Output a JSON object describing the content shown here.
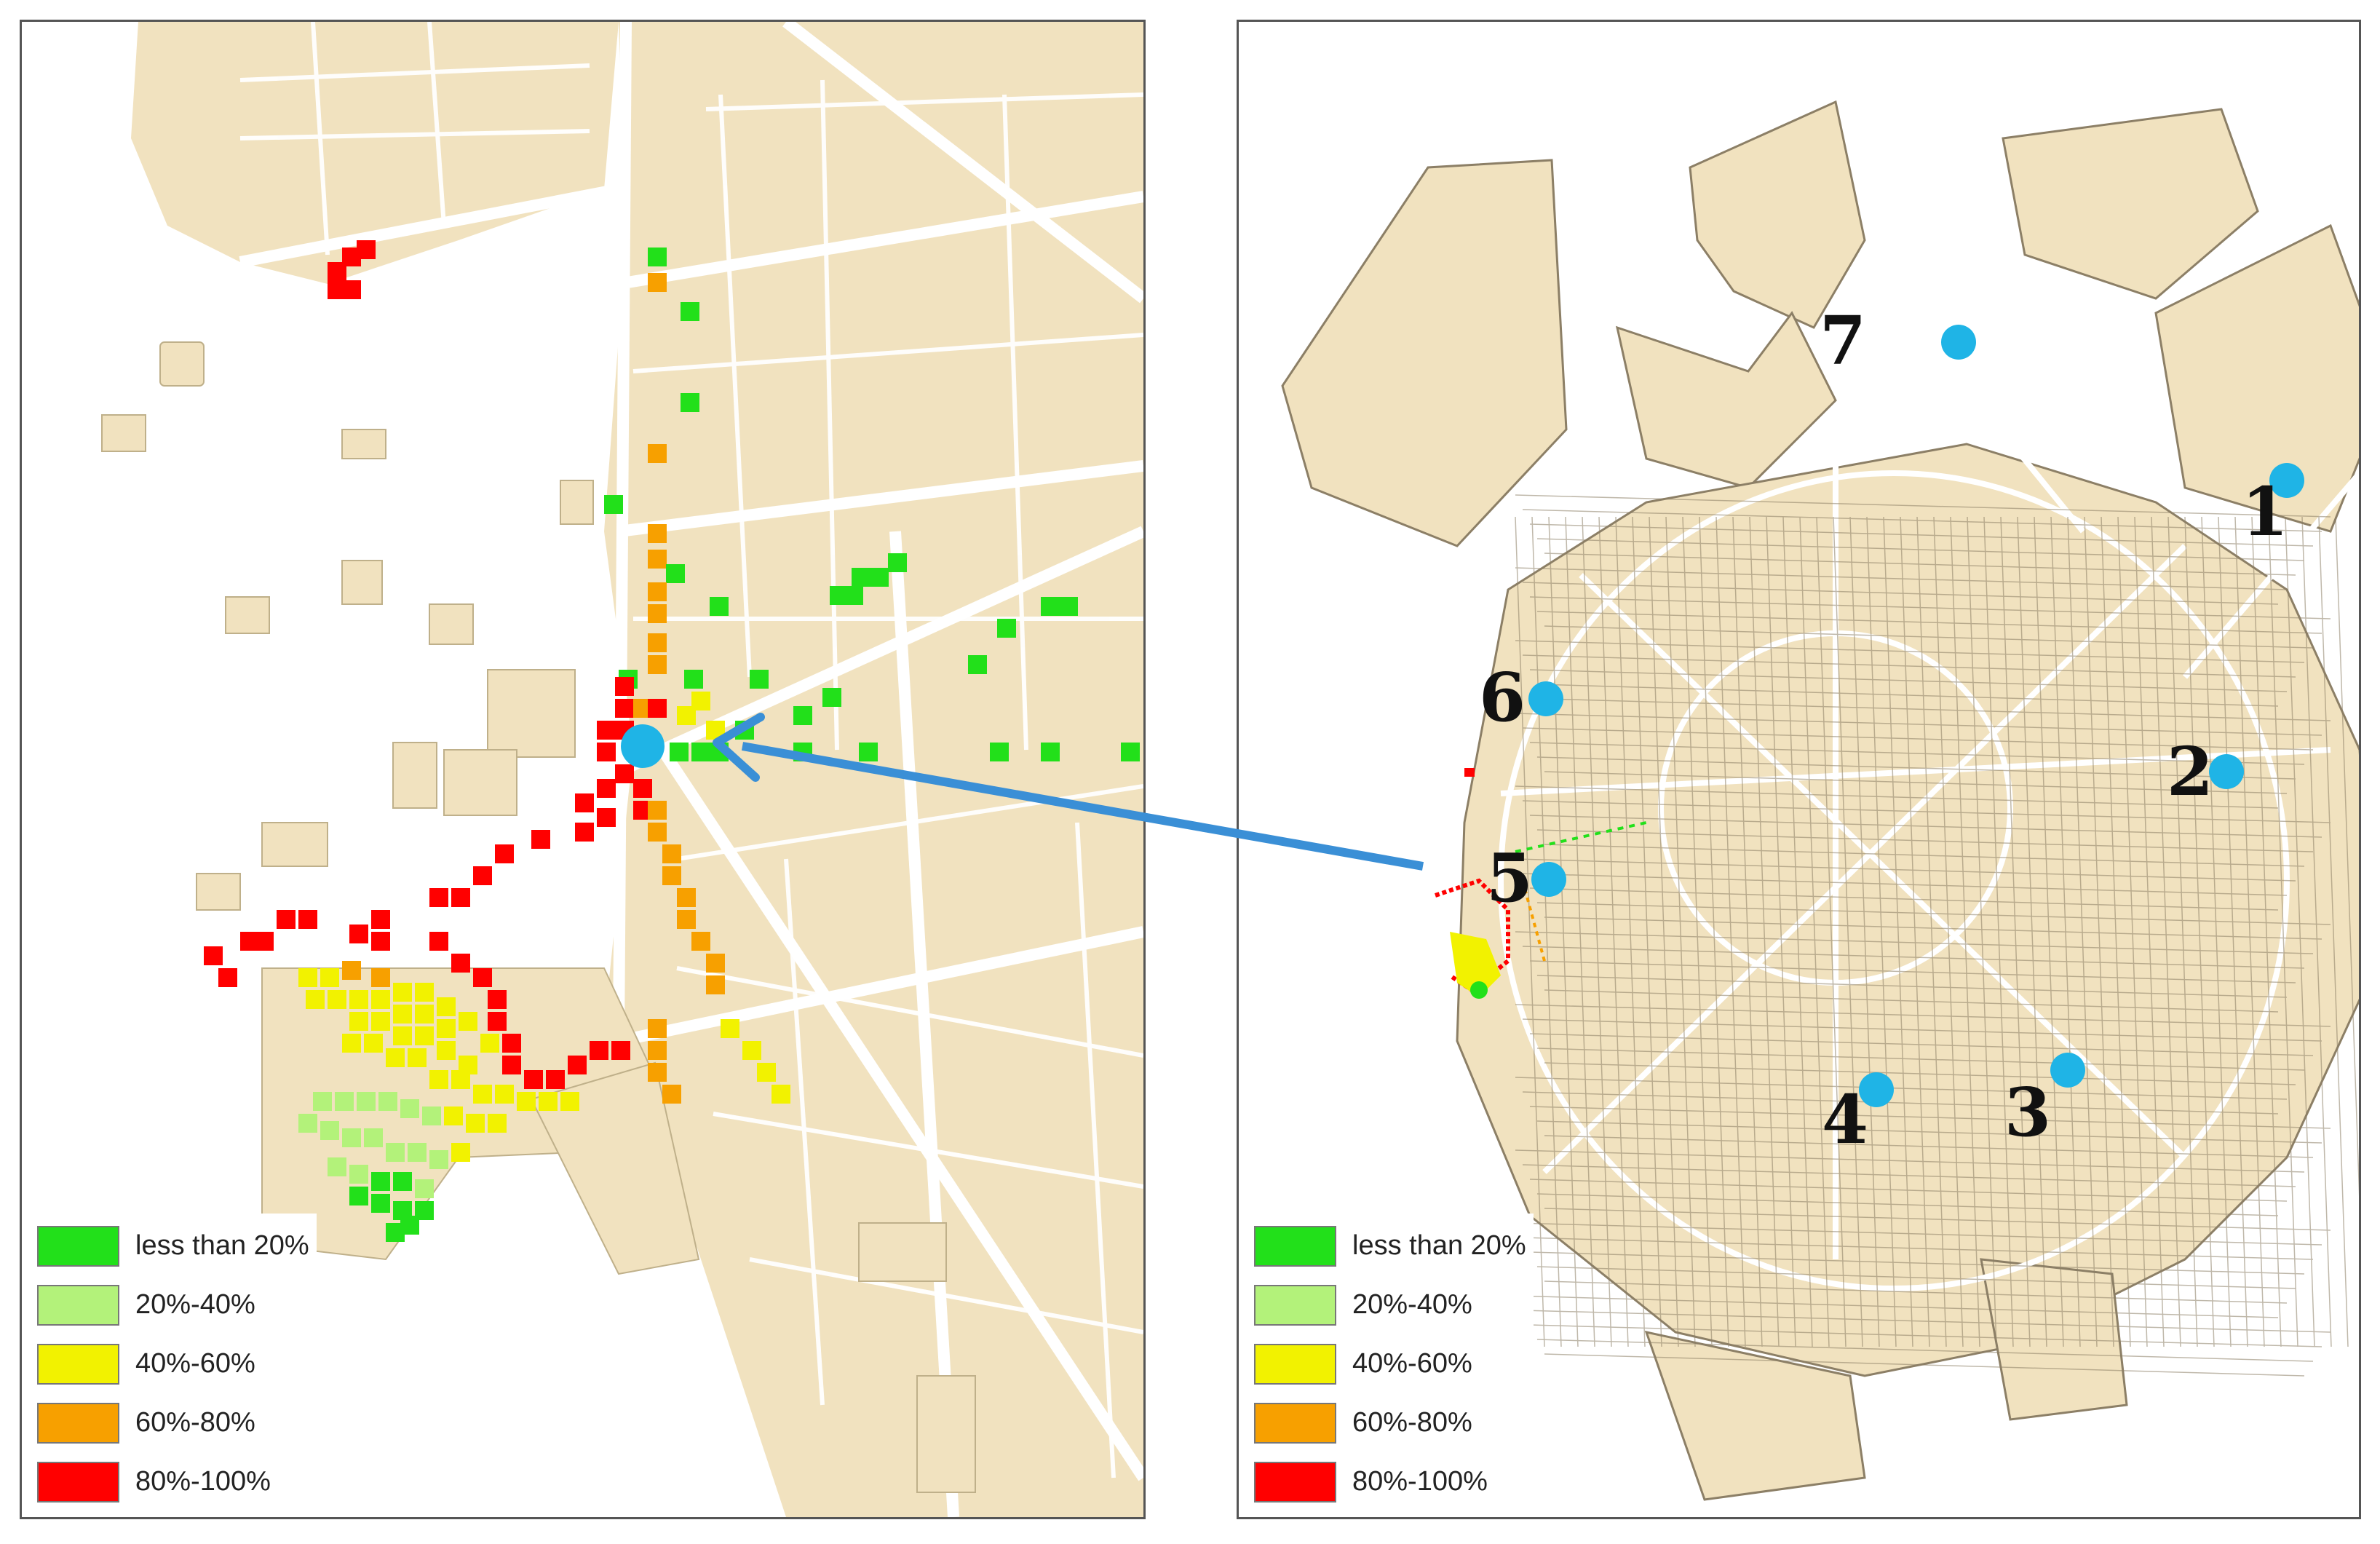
{
  "legend": {
    "items": [
      {
        "label": "less than 20%",
        "color": "#22e01a"
      },
      {
        "label": "20%-40%",
        "color": "#b3f27a"
      },
      {
        "label": "40%-60%",
        "color": "#f2f200"
      },
      {
        "label": "60%-80%",
        "color": "#f7a000"
      },
      {
        "label": "80%-100%",
        "color": "#ff0000"
      }
    ]
  },
  "map_style": {
    "building_fill": "#f1e2bf",
    "building_stroke": "#bfb08a",
    "street_color": "#ffffff",
    "marker_color": "#1fb4e6",
    "arrow_color": "#3a8fd6"
  },
  "sites": [
    {
      "label": "1"
    },
    {
      "label": "2"
    },
    {
      "label": "3"
    },
    {
      "label": "4"
    },
    {
      "label": "5"
    },
    {
      "label": "6"
    },
    {
      "label": "7"
    }
  ]
}
